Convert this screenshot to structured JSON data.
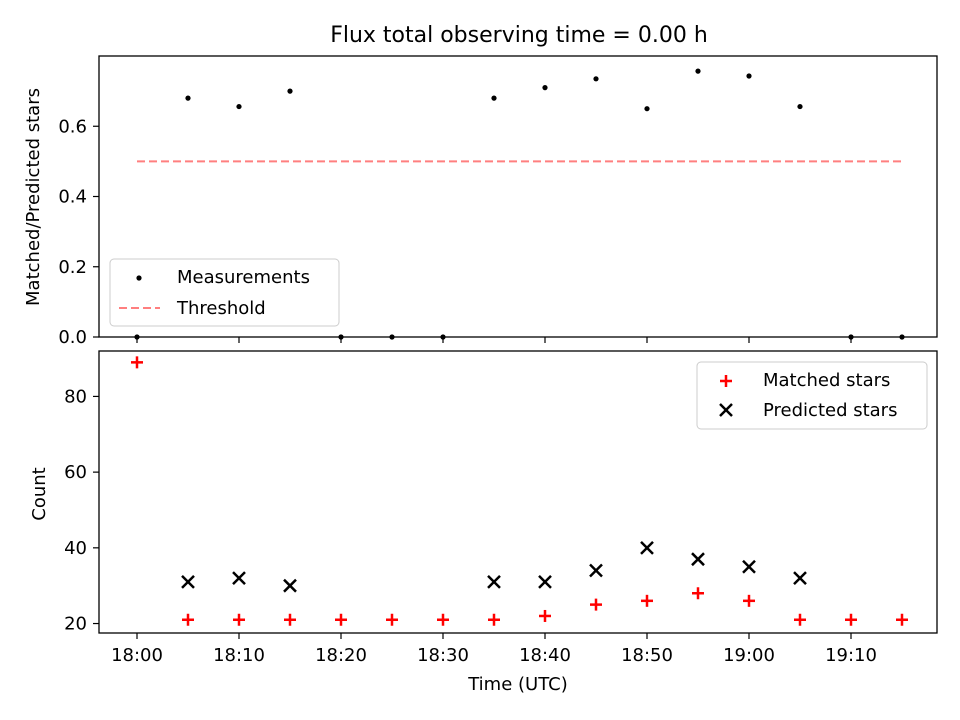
{
  "chart_data": [
    {
      "type": "scatter",
      "title": "Flux total observing time = 0.00 h",
      "xlabel": "",
      "ylabel": "Matched/Predicted stars",
      "ylim": [
        0,
        0.8
      ],
      "yticks": [
        "0.0",
        "0.2",
        "0.4",
        "0.6"
      ],
      "x_time_min": [
        "18:00",
        "18:05",
        "18:10",
        "18:15",
        "18:20",
        "18:25",
        "18:30",
        "18:35",
        "18:40",
        "18:45",
        "18:50",
        "18:55",
        "19:00",
        "19:05",
        "19:10",
        "19:15"
      ],
      "series": [
        {
          "name": "Measurements",
          "marker": "dot",
          "color": "#000000",
          "values": [
            0.0,
            0.68,
            0.656,
            0.7,
            0.0,
            0.0,
            0.0,
            0.68,
            0.71,
            0.735,
            0.65,
            0.757,
            0.743,
            0.656,
            0.0,
            0.0
          ]
        },
        {
          "name": "Threshold",
          "marker": "dashed-line",
          "color": "#ff7f7f",
          "x": [
            "18:00",
            "19:15"
          ],
          "values": [
            0.5,
            0.5
          ]
        }
      ],
      "legend": "lower-left"
    },
    {
      "type": "scatter",
      "xlabel": "Time (UTC)",
      "ylabel": "Count",
      "ylim": [
        17.5,
        92
      ],
      "yticks": [
        "20",
        "40",
        "60",
        "80"
      ],
      "xticks": [
        "18:00",
        "18:10",
        "18:20",
        "18:30",
        "18:40",
        "18:50",
        "19:00",
        "19:10"
      ],
      "series": [
        {
          "name": "Matched stars",
          "marker": "plus",
          "color": "#ff0000",
          "x": [
            "18:00",
            "18:05",
            "18:10",
            "18:15",
            "18:20",
            "18:25",
            "18:30",
            "18:35",
            "18:40",
            "18:45",
            "18:50",
            "18:55",
            "19:00",
            "19:05",
            "19:10",
            "19:15"
          ],
          "values": [
            89,
            21,
            21,
            21,
            21,
            21,
            21,
            21,
            22,
            25,
            26,
            28,
            26,
            21,
            21,
            21
          ]
        },
        {
          "name": "Predicted stars",
          "marker": "x",
          "color": "#000000",
          "x": [
            "18:05",
            "18:10",
            "18:15",
            "18:35",
            "18:40",
            "18:45",
            "18:50",
            "18:55",
            "19:00",
            "19:05"
          ],
          "values": [
            31,
            32,
            30,
            31,
            31,
            34,
            40,
            37,
            35,
            32
          ]
        }
      ],
      "legend": "upper-right"
    }
  ]
}
